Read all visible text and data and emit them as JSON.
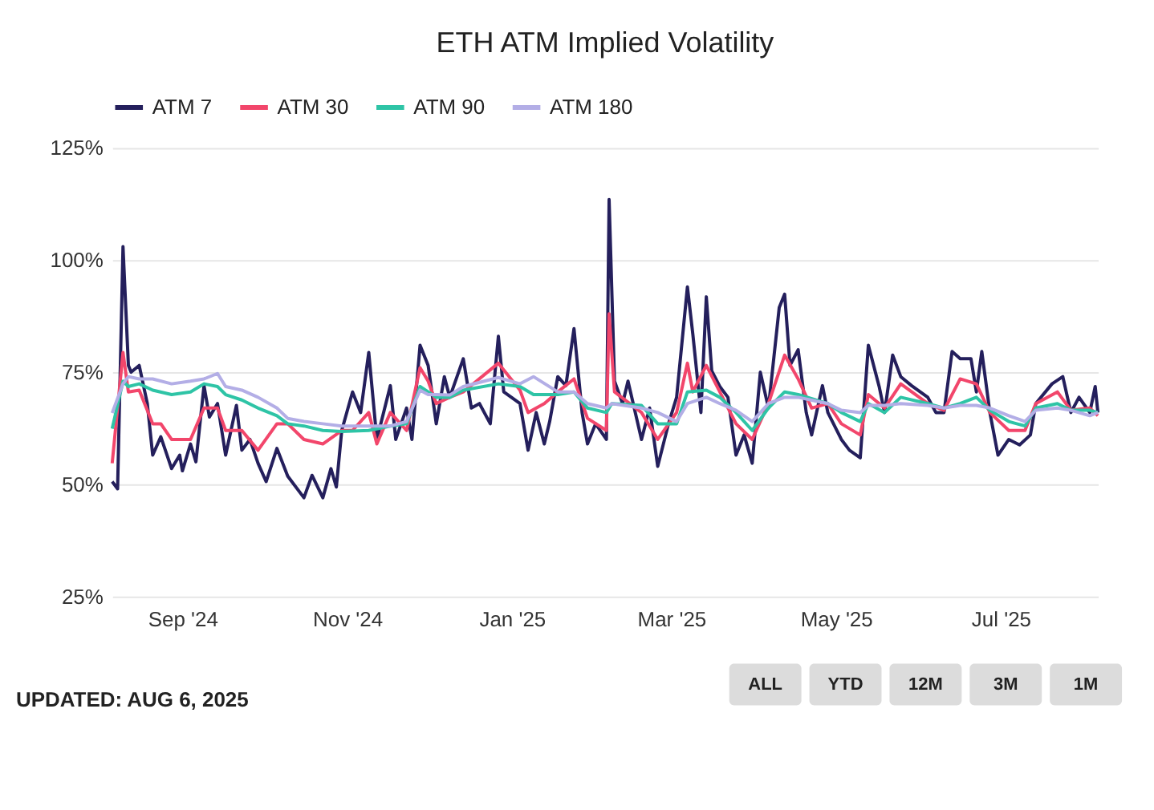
{
  "chart_data": {
    "type": "line",
    "title": "ETH ATM Implied Volatility",
    "xlim": [
      "2024-08-06",
      "2025-08-06"
    ],
    "xticks": [
      {
        "value": "2024-09-01",
        "label": "Sep '24"
      },
      {
        "value": "2024-11-01",
        "label": "Nov '24"
      },
      {
        "value": "2025-01-01",
        "label": "Jan '25"
      },
      {
        "value": "2025-03-01",
        "label": "Mar '25"
      },
      {
        "value": "2025-05-01",
        "label": "May '25"
      },
      {
        "value": "2025-07-01",
        "label": "Jul '25"
      }
    ],
    "ylim": [
      25,
      125
    ],
    "yticks": [
      {
        "value": 25,
        "label": "25%"
      },
      {
        "value": 50,
        "label": "50%"
      },
      {
        "value": 75,
        "label": "75%"
      },
      {
        "value": 100,
        "label": "100%"
      },
      {
        "value": 125,
        "label": "125%"
      }
    ],
    "grid": "y",
    "legend": "top",
    "marker": "none",
    "line_style": "solid",
    "annotations": [
      "UPDATED: AUG 6, 2025",
      "ALL",
      "YTD",
      "12M",
      "3M",
      "1M"
    ],
    "series": [
      {
        "name": "ATM 7",
        "color": "#241f5c",
        "x": [
          "2024-08-06",
          "2024-08-08",
          "2024-08-10",
          "2024-08-12",
          "2024-08-13",
          "2024-08-16",
          "2024-08-19",
          "2024-08-21",
          "2024-08-24",
          "2024-08-28",
          "2024-08-31",
          "2024-09-01",
          "2024-09-04",
          "2024-09-06",
          "2024-09-09",
          "2024-09-11",
          "2024-09-14",
          "2024-09-17",
          "2024-09-21",
          "2024-09-23",
          "2024-09-26",
          "2024-09-29",
          "2024-10-02",
          "2024-10-06",
          "2024-10-10",
          "2024-10-16",
          "2024-10-19",
          "2024-10-23",
          "2024-10-26",
          "2024-10-28",
          "2024-10-30",
          "2024-11-03",
          "2024-11-06",
          "2024-11-09",
          "2024-11-12",
          "2024-11-17",
          "2024-11-19",
          "2024-11-23",
          "2024-11-25",
          "2024-11-28",
          "2024-12-01",
          "2024-12-04",
          "2024-12-07",
          "2024-12-09",
          "2024-12-14",
          "2024-12-17",
          "2024-12-20",
          "2024-12-24",
          "2024-12-27",
          "2024-12-29",
          "2025-01-04",
          "2025-01-07",
          "2025-01-10",
          "2025-01-13",
          "2025-01-15",
          "2025-01-18",
          "2025-01-21",
          "2025-01-24",
          "2025-01-27",
          "2025-01-29",
          "2025-02-01",
          "2025-02-05",
          "2025-02-06",
          "2025-02-08",
          "2025-02-11",
          "2025-02-13",
          "2025-02-18",
          "2025-02-21",
          "2025-02-24",
          "2025-02-28",
          "2025-03-03",
          "2025-03-07",
          "2025-03-09",
          "2025-03-12",
          "2025-03-14",
          "2025-03-16",
          "2025-03-19",
          "2025-03-22",
          "2025-03-25",
          "2025-03-28",
          "2025-03-31",
          "2025-04-03",
          "2025-04-06",
          "2025-04-10",
          "2025-04-12",
          "2025-04-14",
          "2025-04-17",
          "2025-04-20",
          "2025-04-22",
          "2025-04-26",
          "2025-04-28",
          "2025-05-03",
          "2025-05-06",
          "2025-05-10",
          "2025-05-13",
          "2025-05-17",
          "2025-05-19",
          "2025-05-22",
          "2025-05-25",
          "2025-05-29",
          "2025-06-04",
          "2025-06-07",
          "2025-06-10",
          "2025-06-13",
          "2025-06-16",
          "2025-06-20",
          "2025-06-22",
          "2025-06-24",
          "2025-06-27",
          "2025-06-30",
          "2025-07-04",
          "2025-07-08",
          "2025-07-12",
          "2025-07-14",
          "2025-07-20",
          "2025-07-24",
          "2025-07-27",
          "2025-07-30",
          "2025-08-03",
          "2025-08-05",
          "2025-08-06"
        ],
        "values": [
          50.6,
          49,
          103,
          76.5,
          75,
          76.5,
          68,
          56.5,
          60.6,
          53.5,
          56.5,
          53,
          59,
          55,
          72,
          65,
          68,
          56.5,
          67.6,
          57.6,
          60,
          54.7,
          50.6,
          58,
          51.8,
          47,
          52,
          47,
          53.5,
          49.4,
          62,
          70.6,
          66,
          79.4,
          60,
          72,
          60,
          67,
          60,
          81,
          76.5,
          63.5,
          74,
          69.4,
          78,
          67,
          68,
          63.5,
          83,
          70.6,
          68,
          57.6,
          66,
          59,
          64,
          74,
          72,
          84.7,
          66,
          59,
          63.5,
          60,
          113.5,
          73,
          68,
          73,
          60,
          67,
          54,
          63.5,
          69.4,
          94,
          83.5,
          66,
          91.8,
          75.3,
          71.8,
          69.4,
          56.5,
          61,
          54.7,
          75,
          67,
          89.4,
          92.4,
          76.5,
          80,
          66,
          61,
          72,
          66,
          60,
          57.6,
          55.9,
          81,
          71.8,
          66,
          78.8,
          74,
          72,
          69.4,
          66,
          66,
          79.6,
          78,
          78,
          70.6,
          79.6,
          66,
          56.5,
          60,
          58.8,
          61,
          68,
          72.4,
          74,
          66,
          69.4,
          66,
          71.8,
          66
        ]
      },
      {
        "name": "ATM 30",
        "color": "#f2466b",
        "x": [
          "2024-08-06",
          "2024-08-10",
          "2024-08-12",
          "2024-08-16",
          "2024-08-21",
          "2024-08-24",
          "2024-08-28",
          "2024-09-04",
          "2024-09-09",
          "2024-09-14",
          "2024-09-17",
          "2024-09-23",
          "2024-09-29",
          "2024-10-06",
          "2024-10-10",
          "2024-10-16",
          "2024-10-23",
          "2024-10-30",
          "2024-11-03",
          "2024-11-09",
          "2024-11-12",
          "2024-11-17",
          "2024-11-23",
          "2024-11-28",
          "2024-12-01",
          "2024-12-04",
          "2024-12-09",
          "2024-12-14",
          "2024-12-27",
          "2025-01-04",
          "2025-01-07",
          "2025-01-13",
          "2025-01-18",
          "2025-01-24",
          "2025-01-29",
          "2025-02-05",
          "2025-02-06",
          "2025-02-08",
          "2025-02-18",
          "2025-02-24",
          "2025-03-03",
          "2025-03-07",
          "2025-03-09",
          "2025-03-14",
          "2025-03-19",
          "2025-03-25",
          "2025-03-31",
          "2025-04-06",
          "2025-04-12",
          "2025-04-17",
          "2025-04-22",
          "2025-04-28",
          "2025-05-03",
          "2025-05-10",
          "2025-05-13",
          "2025-05-19",
          "2025-05-25",
          "2025-06-04",
          "2025-06-10",
          "2025-06-16",
          "2025-06-22",
          "2025-06-27",
          "2025-07-04",
          "2025-07-10",
          "2025-07-14",
          "2025-07-22",
          "2025-07-27",
          "2025-08-03",
          "2025-08-06"
        ],
        "values": [
          54.7,
          79.4,
          70.6,
          71,
          63.5,
          63.5,
          60,
          60,
          67,
          67,
          62,
          62,
          57.6,
          63.5,
          63.5,
          60,
          59,
          62,
          62,
          66,
          59,
          66,
          62,
          76,
          73,
          68,
          69.4,
          70.6,
          77,
          71,
          66,
          68,
          70.6,
          73.5,
          64.7,
          62,
          88,
          70.6,
          66,
          60,
          66,
          77,
          70.6,
          76.5,
          70.6,
          63.5,
          60,
          68,
          78.8,
          73.5,
          67,
          68,
          63.5,
          61,
          70,
          67,
          72.4,
          68,
          66.5,
          73.5,
          72.4,
          66,
          62,
          62,
          68,
          70.6,
          66.5,
          67,
          65.3
        ]
      },
      {
        "name": "ATM 90",
        "color": "#2ec4a6",
        "x": [
          "2024-08-06",
          "2024-08-10",
          "2024-08-12",
          "2024-08-16",
          "2024-08-21",
          "2024-08-28",
          "2024-09-04",
          "2024-09-09",
          "2024-09-14",
          "2024-09-17",
          "2024-09-23",
          "2024-09-29",
          "2024-10-06",
          "2024-10-10",
          "2024-10-16",
          "2024-10-23",
          "2024-10-30",
          "2024-11-09",
          "2024-11-17",
          "2024-11-23",
          "2024-11-28",
          "2024-12-01",
          "2024-12-04",
          "2024-12-09",
          "2024-12-14",
          "2024-12-27",
          "2025-01-04",
          "2025-01-09",
          "2025-01-18",
          "2025-01-24",
          "2025-01-29",
          "2025-02-05",
          "2025-02-07",
          "2025-02-18",
          "2025-02-24",
          "2025-03-03",
          "2025-03-07",
          "2025-03-14",
          "2025-03-19",
          "2025-03-25",
          "2025-03-31",
          "2025-04-06",
          "2025-04-12",
          "2025-04-17",
          "2025-04-28",
          "2025-05-03",
          "2025-05-10",
          "2025-05-13",
          "2025-05-19",
          "2025-05-25",
          "2025-06-04",
          "2025-06-10",
          "2025-06-16",
          "2025-06-22",
          "2025-06-27",
          "2025-07-04",
          "2025-07-10",
          "2025-07-14",
          "2025-07-22",
          "2025-07-27",
          "2025-08-03",
          "2025-08-06"
        ],
        "values": [
          62.4,
          73,
          71.8,
          72.4,
          71,
          70,
          70.6,
          72.4,
          71.8,
          70,
          68.8,
          67,
          65.3,
          63.5,
          63,
          62,
          61.8,
          62,
          63,
          63.5,
          71.8,
          70.6,
          69.4,
          69.4,
          71,
          72.4,
          71.8,
          70,
          70,
          70.6,
          67,
          66,
          68,
          67.6,
          63.5,
          63.5,
          70.6,
          71,
          69.4,
          66,
          62,
          67,
          70.6,
          70,
          68,
          66,
          64,
          68,
          66,
          69.4,
          68,
          67,
          68,
          69.4,
          66.5,
          64,
          63,
          67,
          68,
          66.5,
          66.5,
          66
        ]
      },
      {
        "name": "ATM 180",
        "color": "#b3aee6",
        "x": [
          "2024-08-06",
          "2024-08-10",
          "2024-08-12",
          "2024-08-16",
          "2024-08-21",
          "2024-08-28",
          "2024-09-04",
          "2024-09-09",
          "2024-09-14",
          "2024-09-17",
          "2024-09-23",
          "2024-09-29",
          "2024-10-06",
          "2024-10-10",
          "2024-10-16",
          "2024-10-23",
          "2024-10-30",
          "2024-11-09",
          "2024-11-17",
          "2024-11-23",
          "2024-11-28",
          "2024-12-01",
          "2024-12-04",
          "2024-12-09",
          "2024-12-14",
          "2024-12-27",
          "2025-01-04",
          "2025-01-09",
          "2025-01-18",
          "2025-01-24",
          "2025-01-29",
          "2025-02-05",
          "2025-02-07",
          "2025-02-18",
          "2025-02-24",
          "2025-03-03",
          "2025-03-07",
          "2025-03-14",
          "2025-03-19",
          "2025-03-25",
          "2025-03-31",
          "2025-04-06",
          "2025-04-12",
          "2025-04-17",
          "2025-04-28",
          "2025-05-03",
          "2025-05-10",
          "2025-05-13",
          "2025-05-19",
          "2025-05-25",
          "2025-06-04",
          "2025-06-10",
          "2025-06-16",
          "2025-06-22",
          "2025-06-27",
          "2025-07-04",
          "2025-07-10",
          "2025-07-14",
          "2025-07-22",
          "2025-07-27",
          "2025-08-03",
          "2025-08-06"
        ],
        "values": [
          65.9,
          72.4,
          74,
          73.5,
          73.5,
          72.4,
          73,
          73.5,
          74.7,
          71.8,
          71,
          69.4,
          67,
          64.7,
          64,
          63.5,
          63,
          63,
          63,
          64,
          71,
          70,
          70,
          69.9,
          71.8,
          73.8,
          72.4,
          74,
          70.6,
          70.6,
          68,
          67,
          68,
          67,
          66,
          64,
          68,
          69.4,
          68,
          66.5,
          64,
          68,
          69.4,
          69.4,
          68,
          66.5,
          66,
          67.6,
          67.6,
          68,
          67.6,
          67,
          67.6,
          67.6,
          67,
          65.3,
          64,
          66.5,
          67,
          66.5,
          65.3,
          66
        ]
      }
    ]
  }
}
